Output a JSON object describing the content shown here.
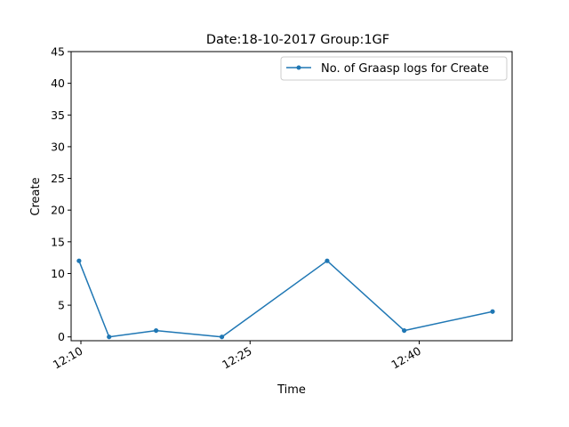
{
  "chart_data": {
    "type": "line",
    "title": "Date:18-10-2017  Group:1GF",
    "xlabel": "Time",
    "ylabel": "Create",
    "ylim": [
      -0.6,
      45
    ],
    "xlim": [
      "12:09:08",
      "12:48:14"
    ],
    "x_ticks": [
      "12:10",
      "12:25",
      "12:40"
    ],
    "y_ticks": [
      0,
      5,
      10,
      15,
      20,
      25,
      30,
      35,
      40,
      45
    ],
    "grid": false,
    "legend_position": "top-right",
    "series": [
      {
        "name": "No. of Graasp logs for Create",
        "color": "#1f77b4",
        "marker": "dot",
        "x": [
          "12:09:50",
          "12:12:30",
          "12:16:40",
          "12:22:30",
          "12:31:50",
          "12:38:40",
          "12:46:30"
        ],
        "values": [
          12,
          0,
          1,
          0,
          12,
          1,
          4
        ]
      }
    ]
  }
}
